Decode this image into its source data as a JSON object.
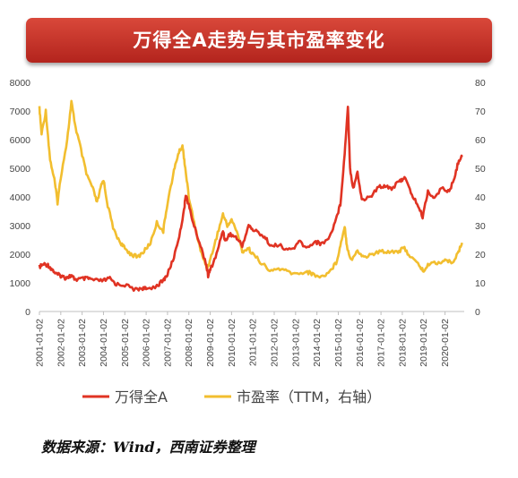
{
  "header": {
    "title": "万得全A走势与其市盈率变化"
  },
  "source": "数据来源：Wind，西南证券整理",
  "colors": {
    "line_left": "#e03323",
    "line_right": "#f2be2f",
    "banner": "#c4302a"
  },
  "chart_data": {
    "type": "line",
    "title": "万得全A走势与其市盈率变化",
    "x_categories": [
      "2001-01-02",
      "2002-01-02",
      "2003-01-02",
      "2004-01-02",
      "2005-01-02",
      "2006-01-02",
      "2007-01-02",
      "2008-01-02",
      "2009-01-02",
      "2010-01-02",
      "2011-01-02",
      "2012-01-02",
      "2013-01-02",
      "2014-01-02",
      "2015-01-02",
      "2016-01-02",
      "2017-01-02",
      "2018-01-02",
      "2019-01-02",
      "2020-01-02"
    ],
    "y_left": {
      "min": 0,
      "max": 8000,
      "ticks": [
        0,
        1000,
        2000,
        3000,
        4000,
        5000,
        6000,
        7000,
        8000
      ]
    },
    "y_right": {
      "min": 0,
      "max": 80,
      "ticks": [
        0,
        10,
        20,
        30,
        40,
        50,
        60,
        70,
        80
      ]
    },
    "legend_position": "bottom",
    "series": [
      {
        "name": "万得全A",
        "axis": "left",
        "color": "#e03323",
        "points": [
          [
            2001.0,
            1560
          ],
          [
            2001.2,
            1650
          ],
          [
            2001.4,
            1620
          ],
          [
            2001.6,
            1460
          ],
          [
            2001.8,
            1300
          ],
          [
            2002.0,
            1250
          ],
          [
            2002.2,
            1180
          ],
          [
            2002.4,
            1240
          ],
          [
            2002.5,
            1220
          ],
          [
            2002.7,
            1120
          ],
          [
            2003.0,
            1140
          ],
          [
            2003.3,
            1150
          ],
          [
            2003.6,
            1080
          ],
          [
            2004.0,
            1080
          ],
          [
            2004.3,
            1150
          ],
          [
            2004.6,
            950
          ],
          [
            2005.0,
            930
          ],
          [
            2005.5,
            760
          ],
          [
            2005.8,
            820
          ],
          [
            2006.0,
            780
          ],
          [
            2006.5,
            900
          ],
          [
            2006.8,
            1080
          ],
          [
            2007.0,
            1300
          ],
          [
            2007.3,
            1900
          ],
          [
            2007.6,
            2800
          ],
          [
            2007.8,
            3700
          ],
          [
            2007.85,
            4100
          ],
          [
            2008.0,
            3700
          ],
          [
            2008.2,
            3100
          ],
          [
            2008.5,
            2400
          ],
          [
            2008.8,
            1700
          ],
          [
            2008.9,
            1250
          ],
          [
            2009.0,
            1450
          ],
          [
            2009.3,
            2000
          ],
          [
            2009.6,
            2850
          ],
          [
            2009.7,
            2450
          ],
          [
            2009.9,
            2700
          ],
          [
            2010.2,
            2600
          ],
          [
            2010.5,
            2300
          ],
          [
            2010.8,
            3000
          ],
          [
            2011.0,
            2850
          ],
          [
            2011.3,
            2750
          ],
          [
            2011.6,
            2550
          ],
          [
            2011.9,
            2250
          ],
          [
            2012.2,
            2350
          ],
          [
            2012.5,
            2150
          ],
          [
            2012.9,
            2200
          ],
          [
            2013.2,
            2450
          ],
          [
            2013.5,
            2200
          ],
          [
            2013.9,
            2450
          ],
          [
            2014.2,
            2350
          ],
          [
            2014.6,
            2600
          ],
          [
            2014.9,
            3250
          ],
          [
            2015.1,
            3750
          ],
          [
            2015.3,
            5500
          ],
          [
            2015.45,
            7200
          ],
          [
            2015.55,
            5000
          ],
          [
            2015.7,
            4300
          ],
          [
            2015.9,
            4850
          ],
          [
            2016.1,
            3900
          ],
          [
            2016.5,
            4000
          ],
          [
            2016.9,
            4350
          ],
          [
            2017.2,
            4400
          ],
          [
            2017.5,
            4300
          ],
          [
            2017.9,
            4550
          ],
          [
            2018.1,
            4700
          ],
          [
            2018.4,
            4150
          ],
          [
            2018.7,
            3750
          ],
          [
            2018.95,
            3300
          ],
          [
            2019.2,
            4200
          ],
          [
            2019.5,
            3950
          ],
          [
            2019.9,
            4350
          ],
          [
            2020.2,
            4150
          ],
          [
            2020.45,
            4700
          ],
          [
            2020.65,
            5300
          ],
          [
            2020.8,
            5400
          ]
        ]
      },
      {
        "name": "市盈率（TTM，右轴）",
        "axis": "right",
        "color": "#f2be2f",
        "points": [
          [
            2001.0,
            71
          ],
          [
            2001.1,
            62
          ],
          [
            2001.3,
            70
          ],
          [
            2001.5,
            53
          ],
          [
            2001.7,
            46
          ],
          [
            2001.85,
            38
          ],
          [
            2002.0,
            47
          ],
          [
            2002.3,
            60
          ],
          [
            2002.5,
            73
          ],
          [
            2002.7,
            64
          ],
          [
            2002.9,
            58
          ],
          [
            2003.2,
            48
          ],
          [
            2003.5,
            43
          ],
          [
            2003.7,
            38
          ],
          [
            2003.9,
            44
          ],
          [
            2004.0,
            46
          ],
          [
            2004.2,
            37
          ],
          [
            2004.5,
            28
          ],
          [
            2004.8,
            24
          ],
          [
            2005.0,
            22
          ],
          [
            2005.3,
            20
          ],
          [
            2005.6,
            19
          ],
          [
            2005.9,
            21
          ],
          [
            2006.2,
            24
          ],
          [
            2006.5,
            31
          ],
          [
            2006.8,
            28
          ],
          [
            2007.0,
            38
          ],
          [
            2007.3,
            49
          ],
          [
            2007.5,
            55
          ],
          [
            2007.7,
            58
          ],
          [
            2007.8,
            52
          ],
          [
            2008.0,
            40
          ],
          [
            2008.3,
            29
          ],
          [
            2008.6,
            20
          ],
          [
            2008.85,
            15
          ],
          [
            2009.0,
            18
          ],
          [
            2009.3,
            26
          ],
          [
            2009.6,
            34
          ],
          [
            2009.8,
            30
          ],
          [
            2010.0,
            32
          ],
          [
            2010.3,
            27
          ],
          [
            2010.5,
            21
          ],
          [
            2010.8,
            22
          ],
          [
            2011.0,
            20
          ],
          [
            2011.4,
            17
          ],
          [
            2011.8,
            14
          ],
          [
            2012.2,
            15
          ],
          [
            2012.6,
            14
          ],
          [
            2013.0,
            13
          ],
          [
            2013.5,
            14
          ],
          [
            2013.8,
            13
          ],
          [
            2014.2,
            12
          ],
          [
            2014.6,
            14
          ],
          [
            2014.9,
            17
          ],
          [
            2015.1,
            23
          ],
          [
            2015.3,
            30
          ],
          [
            2015.4,
            23
          ],
          [
            2015.6,
            18
          ],
          [
            2015.9,
            21
          ],
          [
            2016.2,
            19
          ],
          [
            2016.6,
            20
          ],
          [
            2017.0,
            21
          ],
          [
            2017.4,
            21
          ],
          [
            2017.8,
            21
          ],
          [
            2018.1,
            22
          ],
          [
            2018.4,
            19
          ],
          [
            2018.8,
            16
          ],
          [
            2019.0,
            14
          ],
          [
            2019.3,
            17
          ],
          [
            2019.7,
            17
          ],
          [
            2020.0,
            18
          ],
          [
            2020.3,
            17
          ],
          [
            2020.6,
            20
          ],
          [
            2020.8,
            24
          ]
        ]
      }
    ]
  }
}
